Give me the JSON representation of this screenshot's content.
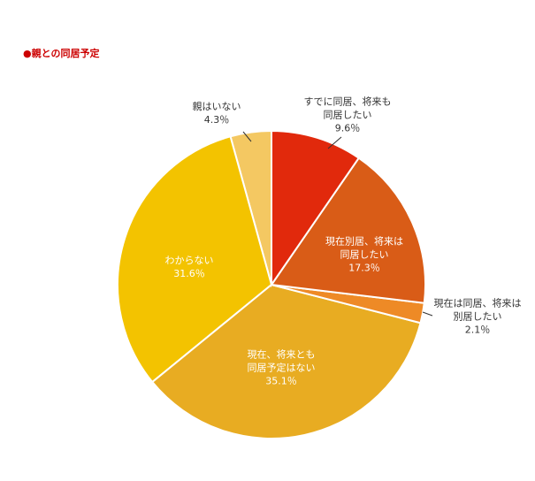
{
  "chart_data": {
    "type": "pie",
    "title": "●親との同居予定",
    "categories": [
      "すでに同居、将来も同居したい",
      "現在別居、将来は同居したい",
      "現在は同居、将来は別居したい",
      "現在、将来とも同居予定はない",
      "わからない",
      "親はいない"
    ],
    "values": [
      9.6,
      17.3,
      2.1,
      35.1,
      31.6,
      4.3
    ],
    "value_labels": [
      "9.6％",
      "17.3％",
      "2.1％",
      "35.1％",
      "31.6％",
      "4.3％"
    ],
    "colors": [
      "#e1290c",
      "#d95c17",
      "#ee8a26",
      "#e8ac22",
      "#f3c300",
      "#f4c862"
    ]
  }
}
